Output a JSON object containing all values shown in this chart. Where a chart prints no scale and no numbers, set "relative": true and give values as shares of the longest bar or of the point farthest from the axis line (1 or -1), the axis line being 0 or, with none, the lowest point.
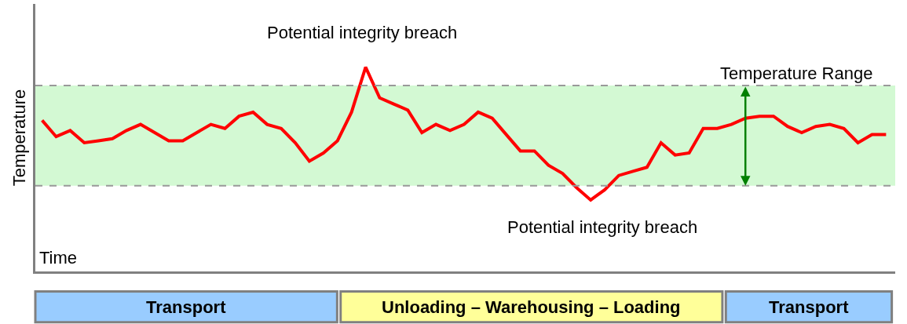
{
  "chart_data": {
    "type": "line",
    "relative": true,
    "xlabel": "Time",
    "ylabel": "Temperature",
    "grid": false,
    "marker": "none",
    "line_style": "solid",
    "categories": [
      null,
      null,
      null,
      null,
      null,
      null,
      null,
      null,
      null,
      null,
      null,
      null,
      null,
      null,
      null,
      null,
      null,
      null,
      null,
      null,
      null,
      null,
      null,
      null,
      null,
      null,
      null,
      null,
      null,
      null,
      null,
      null,
      null,
      null,
      null,
      null,
      null,
      null,
      null,
      null,
      null,
      null,
      null,
      null,
      null,
      null,
      null,
      null,
      null,
      null,
      null,
      null,
      null,
      null,
      null,
      null,
      null,
      null,
      null,
      null,
      null
    ],
    "series": [
      {
        "color": "#ff0000",
        "values": [
          0.74,
          0.66,
          0.69,
          0.63,
          0.64,
          0.65,
          0.69,
          0.72,
          0.68,
          0.64,
          0.64,
          0.68,
          0.72,
          0.7,
          0.76,
          0.78,
          0.72,
          0.7,
          0.63,
          0.54,
          0.58,
          0.64,
          0.78,
          1.0,
          0.85,
          0.82,
          0.79,
          0.68,
          0.72,
          0.69,
          0.72,
          0.78,
          0.75,
          0.67,
          0.59,
          0.59,
          0.52,
          0.48,
          0.41,
          0.35,
          0.4,
          0.47,
          0.49,
          0.51,
          0.63,
          0.57,
          0.58,
          0.7,
          0.7,
          0.72,
          0.75,
          0.76,
          0.76,
          0.71,
          0.68,
          0.71,
          0.72,
          0.7,
          0.63,
          0.67,
          0.67
        ]
      }
    ],
    "ref_lines": [
      {
        "axis": "y",
        "value": 0.91,
        "color": "#999999",
        "line_style": "dashed"
      },
      {
        "axis": "y",
        "value": 0.42,
        "color": "#999999",
        "line_style": "dashed"
      }
    ],
    "bands": [
      {
        "axis": "y",
        "from": 0.42,
        "to": 0.91,
        "label": "Temperature Range",
        "color": "#c8f8c8"
      }
    ],
    "annotations": [
      "Potential integrity breach",
      "Potential integrity breach",
      "Transport",
      "Unloading – Warehousing – Loading",
      "Transport"
    ]
  }
}
